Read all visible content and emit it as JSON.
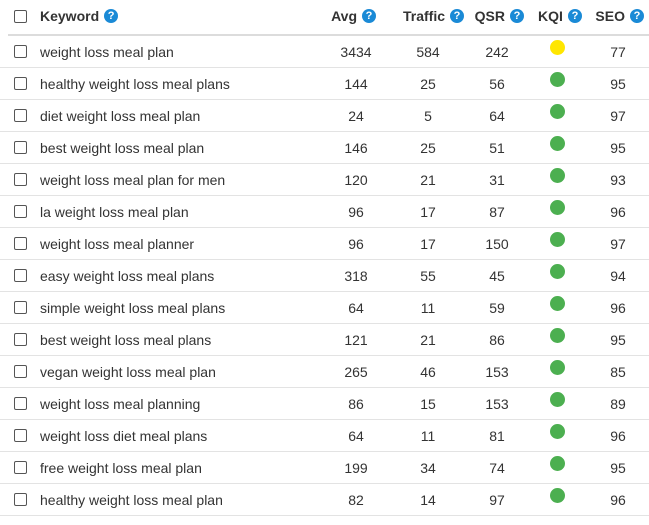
{
  "colors": {
    "green": "#4caf50",
    "yellow": "#ffe600",
    "help_blue": "#1a8ad6"
  },
  "header": {
    "keyword": "Keyword",
    "avg": "Avg",
    "traffic": "Traffic",
    "qsr": "QSR",
    "kqi": "KQI",
    "seo": "SEO",
    "help_glyph": "?"
  },
  "rows": [
    {
      "keyword": "weight loss meal plan",
      "avg": "3434",
      "traffic": "584",
      "qsr": "242",
      "kqi": "yellow",
      "seo": "77"
    },
    {
      "keyword": "healthy weight loss meal plans",
      "avg": "144",
      "traffic": "25",
      "qsr": "56",
      "kqi": "green",
      "seo": "95"
    },
    {
      "keyword": "diet weight loss meal plan",
      "avg": "24",
      "traffic": "5",
      "qsr": "64",
      "kqi": "green",
      "seo": "97"
    },
    {
      "keyword": "best weight loss meal plan",
      "avg": "146",
      "traffic": "25",
      "qsr": "51",
      "kqi": "green",
      "seo": "95"
    },
    {
      "keyword": "weight loss meal plan for men",
      "avg": "120",
      "traffic": "21",
      "qsr": "31",
      "kqi": "green",
      "seo": "93"
    },
    {
      "keyword": "la weight loss meal plan",
      "avg": "96",
      "traffic": "17",
      "qsr": "87",
      "kqi": "green",
      "seo": "96"
    },
    {
      "keyword": "weight loss meal planner",
      "avg": "96",
      "traffic": "17",
      "qsr": "150",
      "kqi": "green",
      "seo": "97"
    },
    {
      "keyword": "easy weight loss meal plans",
      "avg": "318",
      "traffic": "55",
      "qsr": "45",
      "kqi": "green",
      "seo": "94"
    },
    {
      "keyword": "simple weight loss meal plans",
      "avg": "64",
      "traffic": "11",
      "qsr": "59",
      "kqi": "green",
      "seo": "96"
    },
    {
      "keyword": "best weight loss meal plans",
      "avg": "121",
      "traffic": "21",
      "qsr": "86",
      "kqi": "green",
      "seo": "95"
    },
    {
      "keyword": "vegan weight loss meal plan",
      "avg": "265",
      "traffic": "46",
      "qsr": "153",
      "kqi": "green",
      "seo": "85"
    },
    {
      "keyword": "weight loss meal planning",
      "avg": "86",
      "traffic": "15",
      "qsr": "153",
      "kqi": "green",
      "seo": "89"
    },
    {
      "keyword": "weight loss diet meal plans",
      "avg": "64",
      "traffic": "11",
      "qsr": "81",
      "kqi": "green",
      "seo": "96"
    },
    {
      "keyword": "free weight loss meal plan",
      "avg": "199",
      "traffic": "34",
      "qsr": "74",
      "kqi": "green",
      "seo": "95"
    },
    {
      "keyword": "healthy weight loss meal plan",
      "avg": "82",
      "traffic": "14",
      "qsr": "97",
      "kqi": "green",
      "seo": "96"
    }
  ]
}
